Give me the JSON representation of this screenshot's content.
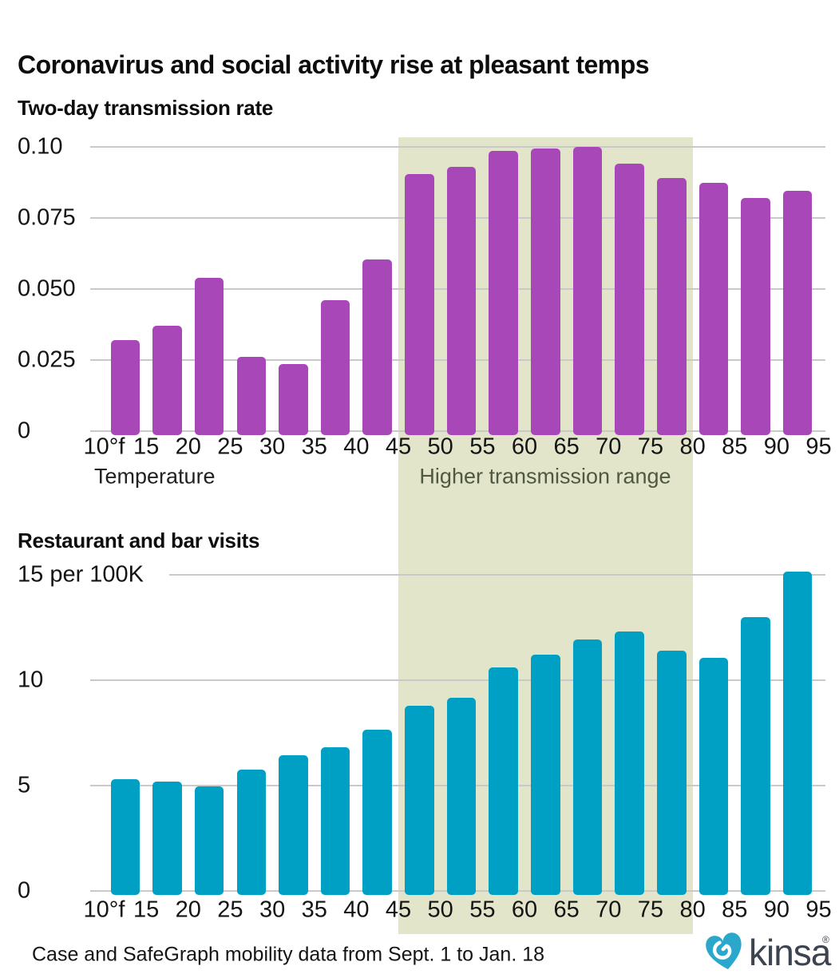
{
  "page_title": "Coronavirus and social activity rise at pleasant temps",
  "x_axis": {
    "title": "Temperature",
    "bin_edges": [
      "10°f",
      "15",
      "20",
      "25",
      "30",
      "35",
      "40",
      "45",
      "50",
      "55",
      "60",
      "65",
      "70",
      "75",
      "80",
      "85",
      "90",
      "95"
    ]
  },
  "band": {
    "label": "Higher transmission range",
    "from_temp": 45,
    "to_temp": 80,
    "fill": "#e2e5c9",
    "label_color": "#4f5840"
  },
  "colors": {
    "transmission_bars": "#a847b8",
    "visits_bars": "#009fc4",
    "gridline": "#c9c9c9",
    "text": "#141414"
  },
  "chart_data": [
    {
      "type": "bar",
      "title": "Two-day transmission rate",
      "xlabel": "Temperature",
      "ylabel": "",
      "ylim": [
        0,
        0.1
      ],
      "grid": true,
      "bar_color": "#a847b8",
      "y_ticks": [
        {
          "value": 0.1,
          "label": "0.10"
        },
        {
          "value": 0.075,
          "label": "0.075"
        },
        {
          "value": 0.05,
          "label": "0.050"
        },
        {
          "value": 0.025,
          "label": "0.025"
        },
        {
          "value": 0,
          "label": "0"
        }
      ],
      "categories": [
        "10-15",
        "15-20",
        "20-25",
        "25-30",
        "30-35",
        "35-40",
        "40-45",
        "45-50",
        "50-55",
        "55-60",
        "60-65",
        "65-70",
        "70-75",
        "75-80",
        "80-85",
        "85-90",
        "90-95"
      ],
      "values": [
        0.032,
        0.037,
        0.054,
        0.026,
        0.0235,
        0.046,
        0.0605,
        0.0905,
        0.093,
        0.0985,
        0.0995,
        0.1,
        0.094,
        0.089,
        0.0875,
        0.082,
        0.0845
      ],
      "highlight_range": [
        45,
        80
      ]
    },
    {
      "type": "bar",
      "title": "Restaurant and bar visits",
      "xlabel": "Temperature",
      "ylabel": "per 100K",
      "ylim": [
        0,
        15
      ],
      "grid": true,
      "bar_color": "#009fc4",
      "y_ticks": [
        {
          "value": 15,
          "label": "15 per 100K"
        },
        {
          "value": 10,
          "label": "10"
        },
        {
          "value": 5,
          "label": "5"
        },
        {
          "value": 0,
          "label": "0"
        }
      ],
      "categories": [
        "10-15",
        "15-20",
        "20-25",
        "25-30",
        "30-35",
        "35-40",
        "40-45",
        "45-50",
        "50-55",
        "55-60",
        "60-65",
        "65-70",
        "70-75",
        "75-80",
        "80-85",
        "85-90",
        "90-95"
      ],
      "values": [
        5.3,
        5.2,
        4.95,
        5.75,
        6.45,
        6.8,
        7.65,
        8.8,
        9.15,
        10.6,
        11.2,
        11.95,
        12.3,
        11.4,
        11.05,
        13.0,
        15.15
      ],
      "highlight_range": [
        45,
        80
      ]
    }
  ],
  "footer": {
    "source": "Case and SafeGraph mobility data from Sept. 1 to Jan. 18",
    "brand": "kinsa",
    "registered_mark": "®"
  }
}
